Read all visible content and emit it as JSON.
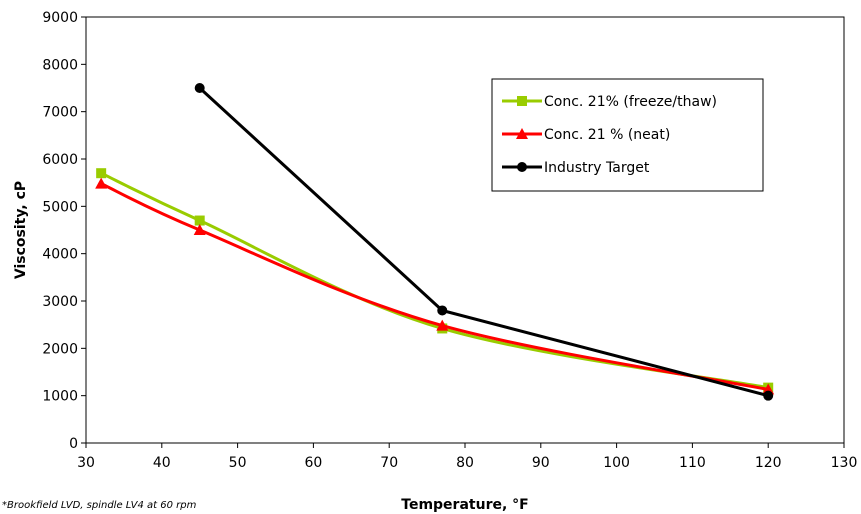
{
  "chart_data": {
    "type": "line",
    "xlabel": "Temperature, °F",
    "ylabel": "Viscosity, cP",
    "xlim": [
      30,
      130
    ],
    "ylim": [
      0,
      9000
    ],
    "xticks": [
      30,
      40,
      50,
      60,
      70,
      80,
      90,
      100,
      110,
      120,
      130
    ],
    "yticks": [
      0,
      1000,
      2000,
      3000,
      4000,
      5000,
      6000,
      7000,
      8000,
      9000
    ],
    "grid": false,
    "legend_position": "top-right",
    "series": [
      {
        "name": "Conc. 21% (freeze/thaw)",
        "color": "#99cc00",
        "marker": "square",
        "x": [
          32,
          45,
          77,
          120
        ],
        "y": [
          5700,
          4700,
          2420,
          1170
        ]
      },
      {
        "name": "Conc. 21 % (neat)",
        "color": "#ff0000",
        "marker": "triangle",
        "x": [
          32,
          45,
          77,
          120
        ],
        "y": [
          5480,
          4500,
          2480,
          1130
        ]
      },
      {
        "name": "Industry Target",
        "color": "#000000",
        "marker": "circle",
        "x": [
          45,
          77,
          120
        ],
        "y": [
          7500,
          2800,
          1000
        ]
      }
    ]
  },
  "footnote": "*Brookfield LVD, spindle LV4 at 60 rpm"
}
